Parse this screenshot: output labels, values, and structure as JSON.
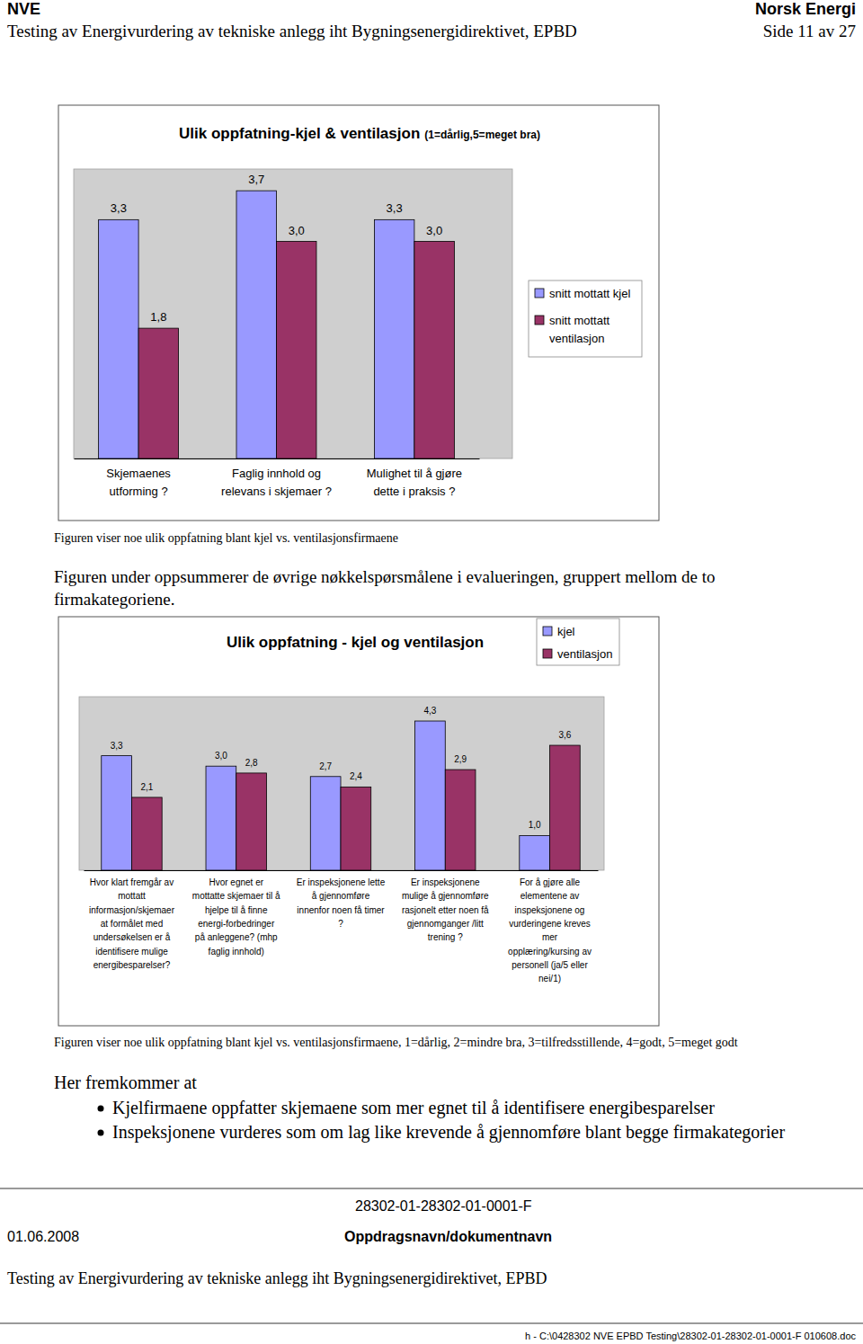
{
  "page": {
    "header_left": "NVE",
    "header_right": "Norsk Energi",
    "header_title": "Testing av Energivurdering av tekniske anlegg iht Bygningsenergidirektivet, EPBD",
    "page_number": "Side 11 av 27",
    "caption_1": "Figuren viser noe ulik oppfatning blant kjel vs. ventilasjonsfirmaene",
    "paragraph": "Figuren under oppsummerer de øvrige nøkkelspørsmålene i evalueringen, gruppert mellom de to firmakategoriene.",
    "caption_2": "Figuren viser noe ulik oppfatning blant kjel vs. ventilasjonsfirmaene, 1=dårlig, 2=mindre bra, 3=tilfredsstillende, 4=godt, 5=meget godt",
    "conclusion_intro": "Her fremkommer at",
    "bullets": [
      "Kjelfirmaene oppfatter skjemaene som mer egnet til å identifisere energibesparelser",
      "Inspeksjonene vurderes som om lag like krevende å gjennomføre blant begge firmakategorier"
    ],
    "footer_doc_id": "28302-01-28302-01-0001-F",
    "footer_date": "01.06.2008",
    "footer_name": "Oppdragsnavn/dokumentnavn",
    "footer_title": "Testing av Energivurdering av tekniske anlegg iht Bygningsenergidirektivet, EPBD",
    "footer_path": "h - C:\\0428302 NVE EPBD Testing\\28302-01-28302-01-0001-F 010608.doc"
  },
  "chart_data": [
    {
      "type": "bar",
      "title": "Ulik oppfatning-kjel & ventilasjon",
      "subtitle": "(1=dårlig,5=meget bra)",
      "categories": [
        "Skjemaenes\nutforming ?",
        "Faglig innhold og\nrelevans i skjemaer ?",
        "Mulighet til å gjøre\ndette i praksis ?"
      ],
      "series": [
        {
          "name": "snitt mottatt kjel",
          "color": "#9999ff",
          "values": [
            3.3,
            3.7,
            3.3
          ],
          "value_labels": [
            "3,3",
            "3,7",
            "3,3"
          ]
        },
        {
          "name": "snitt mottatt\nventilasjon",
          "color": "#993366",
          "values": [
            1.8,
            3.0,
            3.0
          ],
          "value_labels": [
            "1,8",
            "3,0",
            "3,0"
          ]
        }
      ],
      "ylim": [
        0,
        4
      ],
      "data_labels": true,
      "tick_labels": "x",
      "legend": "right"
    },
    {
      "type": "bar",
      "title": "Ulik oppfatning  - kjel og ventilasjon",
      "categories": [
        "Hvor klart fremgår av\nmottatt\ninformasjon/skjemaer\nat formålet med\nundersøkelsen er å\nidentifisere mulige\nenergibesparelser?",
        "Hvor egnet er\nmottatte skjemaer til å\nhjelpe til å finne\nenergi-forbedringer\npå anleggene? (mhp\nfaglig innhold)",
        "Er inspeksjonene lette\nå gjennomføre\ninnenfor noen få timer\n?",
        "Er inspeksjonene\nmulige å gjennomføre\nrasjonelt etter noen få\ngjennomganger /litt\ntrening ?",
        "For å gjøre alle\nelementene av\ninspeksjonene og\nvurderingene kreves\nmer\nopplæring/kursing av\npersonell (ja/5 eller\nnei/1)"
      ],
      "series": [
        {
          "name": "kjel",
          "color": "#9999ff",
          "values": [
            3.3,
            3.0,
            2.7,
            4.3,
            1.0
          ],
          "value_labels": [
            "3,3",
            "3,0",
            "2,7",
            "4,3",
            "1,0"
          ]
        },
        {
          "name": "ventilasjon",
          "color": "#993366",
          "values": [
            2.1,
            2.8,
            2.4,
            2.9,
            3.6
          ],
          "value_labels": [
            "2,1",
            "2,8",
            "2,4",
            "2,9",
            "3,6"
          ]
        }
      ],
      "ylim": [
        0,
        5
      ],
      "data_labels": true,
      "tick_labels": "x",
      "legend": "top-right"
    }
  ]
}
